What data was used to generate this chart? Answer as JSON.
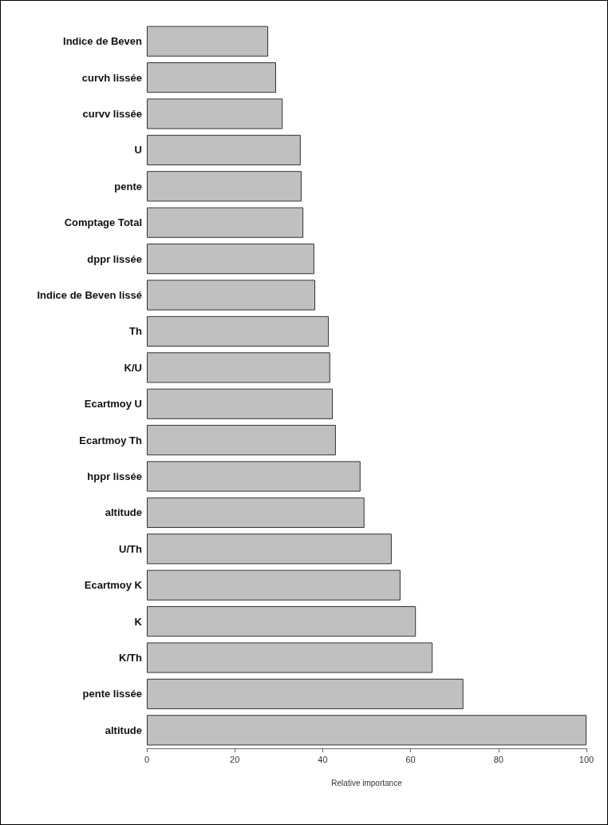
{
  "chart_data": {
    "type": "bar",
    "orientation": "horizontal",
    "xlabel": "Relative importance",
    "categories": [
      "Indice de Beven",
      "curvh lissée",
      "curvv lissée",
      "U",
      "pente",
      "Comptage Total",
      "dppr lissée",
      "Indice de Beven lissé",
      "Th",
      "K/U",
      "Ecartmoy U",
      "Ecartmoy Th",
      "hppr lissée",
      "altitude",
      "U/Th",
      "Ecartmoy K",
      "K",
      "K/Th",
      "pente lissée",
      "altitude"
    ],
    "values": [
      27.6,
      29.4,
      30.9,
      35.0,
      35.2,
      35.6,
      38.1,
      38.3,
      41.4,
      41.7,
      42.3,
      43.0,
      48.6,
      49.5,
      55.7,
      57.7,
      61.2,
      65.0,
      72.0,
      100
    ],
    "color": "#c0c0c0",
    "xlim": [
      0,
      100
    ],
    "xticks": [
      0,
      20,
      40,
      60,
      80,
      100
    ],
    "grid": false
  }
}
